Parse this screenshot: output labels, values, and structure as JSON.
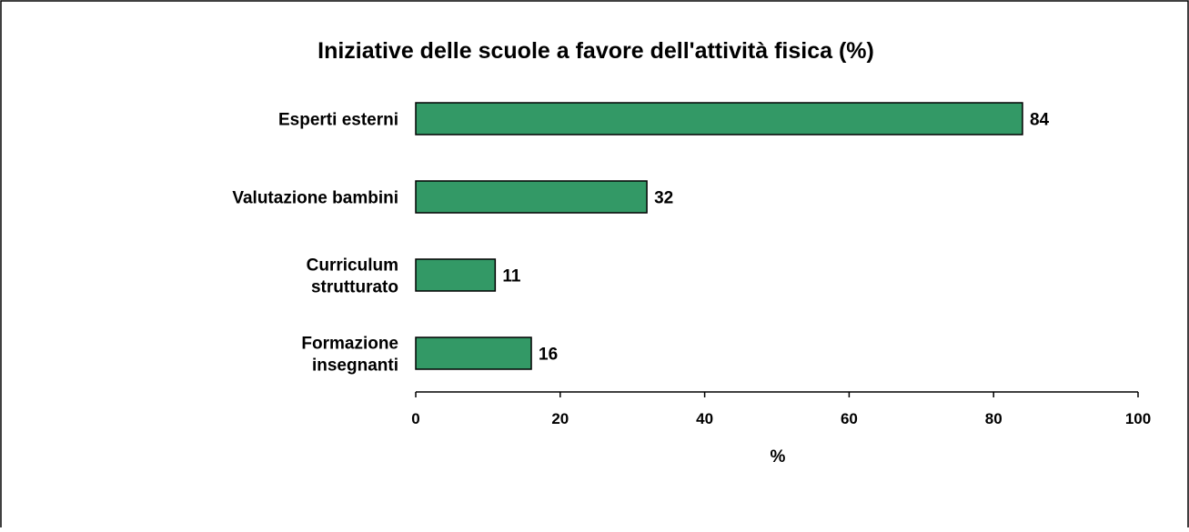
{
  "chart_data": {
    "type": "bar",
    "orientation": "horizontal",
    "title": "Iniziative delle scuole a favore dell'attività fisica (%)",
    "xlabel": "%",
    "ylabel": "",
    "categories": [
      [
        "Esperti esterni"
      ],
      [
        "Valutazione bambini"
      ],
      [
        "Curriculum",
        "strutturato"
      ],
      [
        "Formazione",
        "insegnanti"
      ]
    ],
    "values": [
      84,
      32,
      11,
      16
    ],
    "value_labels": [
      "84",
      "32",
      "11",
      "16"
    ],
    "xlim": [
      0,
      100
    ],
    "xticks": [
      0,
      20,
      40,
      60,
      80,
      100
    ],
    "xtick_labels": [
      "0",
      "20",
      "40",
      "60",
      "80",
      "100"
    ],
    "grid": false,
    "legend": "none",
    "colors": {
      "bar_fill": "#339966",
      "bar_stroke": "#000000",
      "frame": "#000000",
      "background": "#ffffff"
    }
  }
}
